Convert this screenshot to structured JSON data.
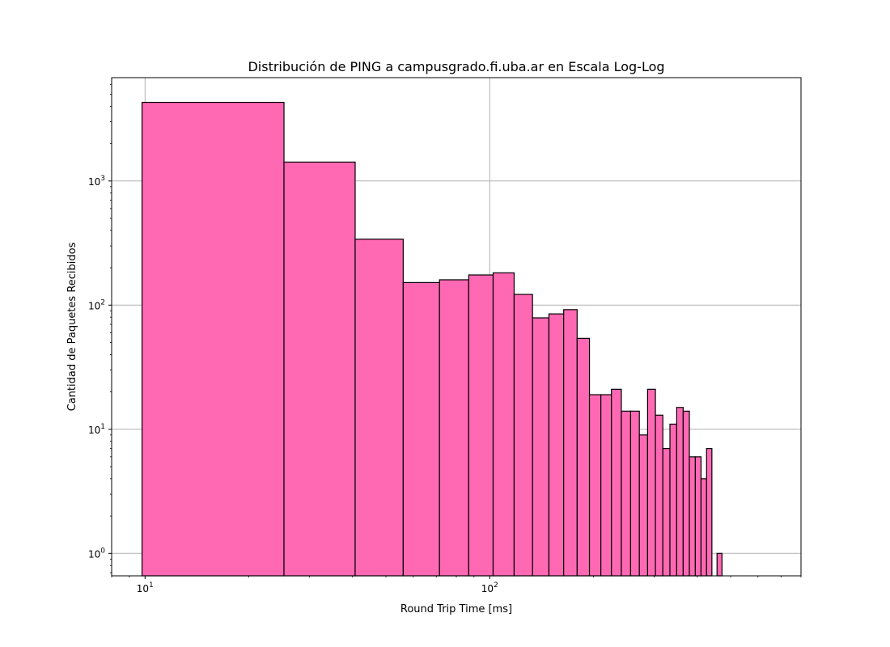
{
  "chart_data": {
    "type": "bar",
    "title": "Distribución de PING a campusgrado.fi.uba.ar en Escala Log-Log",
    "xlabel": "Round Trip Time [ms]",
    "ylabel": "Cantidad de Paquetes Recibidos",
    "xscale": "log",
    "yscale": "log",
    "xlim": [
      8.0,
      800
    ],
    "ylim": [
      0.66,
      6800
    ],
    "grid": true,
    "bar_color": "#ff69b4",
    "edge_color": "#000000",
    "x_ticks": [
      {
        "value": 10,
        "base": "10",
        "exp": "1"
      },
      {
        "value": 100,
        "base": "10",
        "exp": "2"
      }
    ],
    "y_ticks": [
      {
        "value": 1,
        "base": "10",
        "exp": "0"
      },
      {
        "value": 10,
        "base": "10",
        "exp": "1"
      },
      {
        "value": 100,
        "base": "10",
        "exp": "2"
      },
      {
        "value": 1000,
        "base": "10",
        "exp": "3"
      }
    ],
    "bins": [
      {
        "left": 9.8,
        "right": 25.3,
        "count": 4300
      },
      {
        "left": 25.3,
        "right": 40.7,
        "count": 1420
      },
      {
        "left": 40.7,
        "right": 56.1,
        "count": 340
      },
      {
        "left": 56.1,
        "right": 71.5,
        "count": 152
      },
      {
        "left": 71.5,
        "right": 86.9,
        "count": 160
      },
      {
        "left": 86.9,
        "right": 102.3,
        "count": 175
      },
      {
        "left": 102.3,
        "right": 117.7,
        "count": 182
      },
      {
        "left": 117.7,
        "right": 133.1,
        "count": 122
      },
      {
        "left": 133.1,
        "right": 148.5,
        "count": 79
      },
      {
        "left": 148.5,
        "right": 163.9,
        "count": 85
      },
      {
        "left": 163.9,
        "right": 179.3,
        "count": 92
      },
      {
        "left": 179.3,
        "right": 194.7,
        "count": 54
      },
      {
        "left": 194.7,
        "right": 210.1,
        "count": 19
      },
      {
        "left": 210.1,
        "right": 225.5,
        "count": 19
      },
      {
        "left": 225.5,
        "right": 240.9,
        "count": 21
      },
      {
        "left": 240.9,
        "right": 256.3,
        "count": 14
      },
      {
        "left": 256.3,
        "right": 271.7,
        "count": 14
      },
      {
        "left": 271.7,
        "right": 287.1,
        "count": 9
      },
      {
        "left": 287.1,
        "right": 302.5,
        "count": 21
      },
      {
        "left": 302.5,
        "right": 317.9,
        "count": 13
      },
      {
        "left": 317.9,
        "right": 333.3,
        "count": 7
      },
      {
        "left": 333.3,
        "right": 348.7,
        "count": 11
      },
      {
        "left": 348.7,
        "right": 364.1,
        "count": 15
      },
      {
        "left": 364.1,
        "right": 379.5,
        "count": 14
      },
      {
        "left": 379.5,
        "right": 394.9,
        "count": 6
      },
      {
        "left": 394.9,
        "right": 410.3,
        "count": 6
      },
      {
        "left": 410.3,
        "right": 425.7,
        "count": 4
      },
      {
        "left": 425.7,
        "right": 441.1,
        "count": 7
      },
      {
        "left": 456.5,
        "right": 471.9,
        "count": 1
      }
    ]
  }
}
